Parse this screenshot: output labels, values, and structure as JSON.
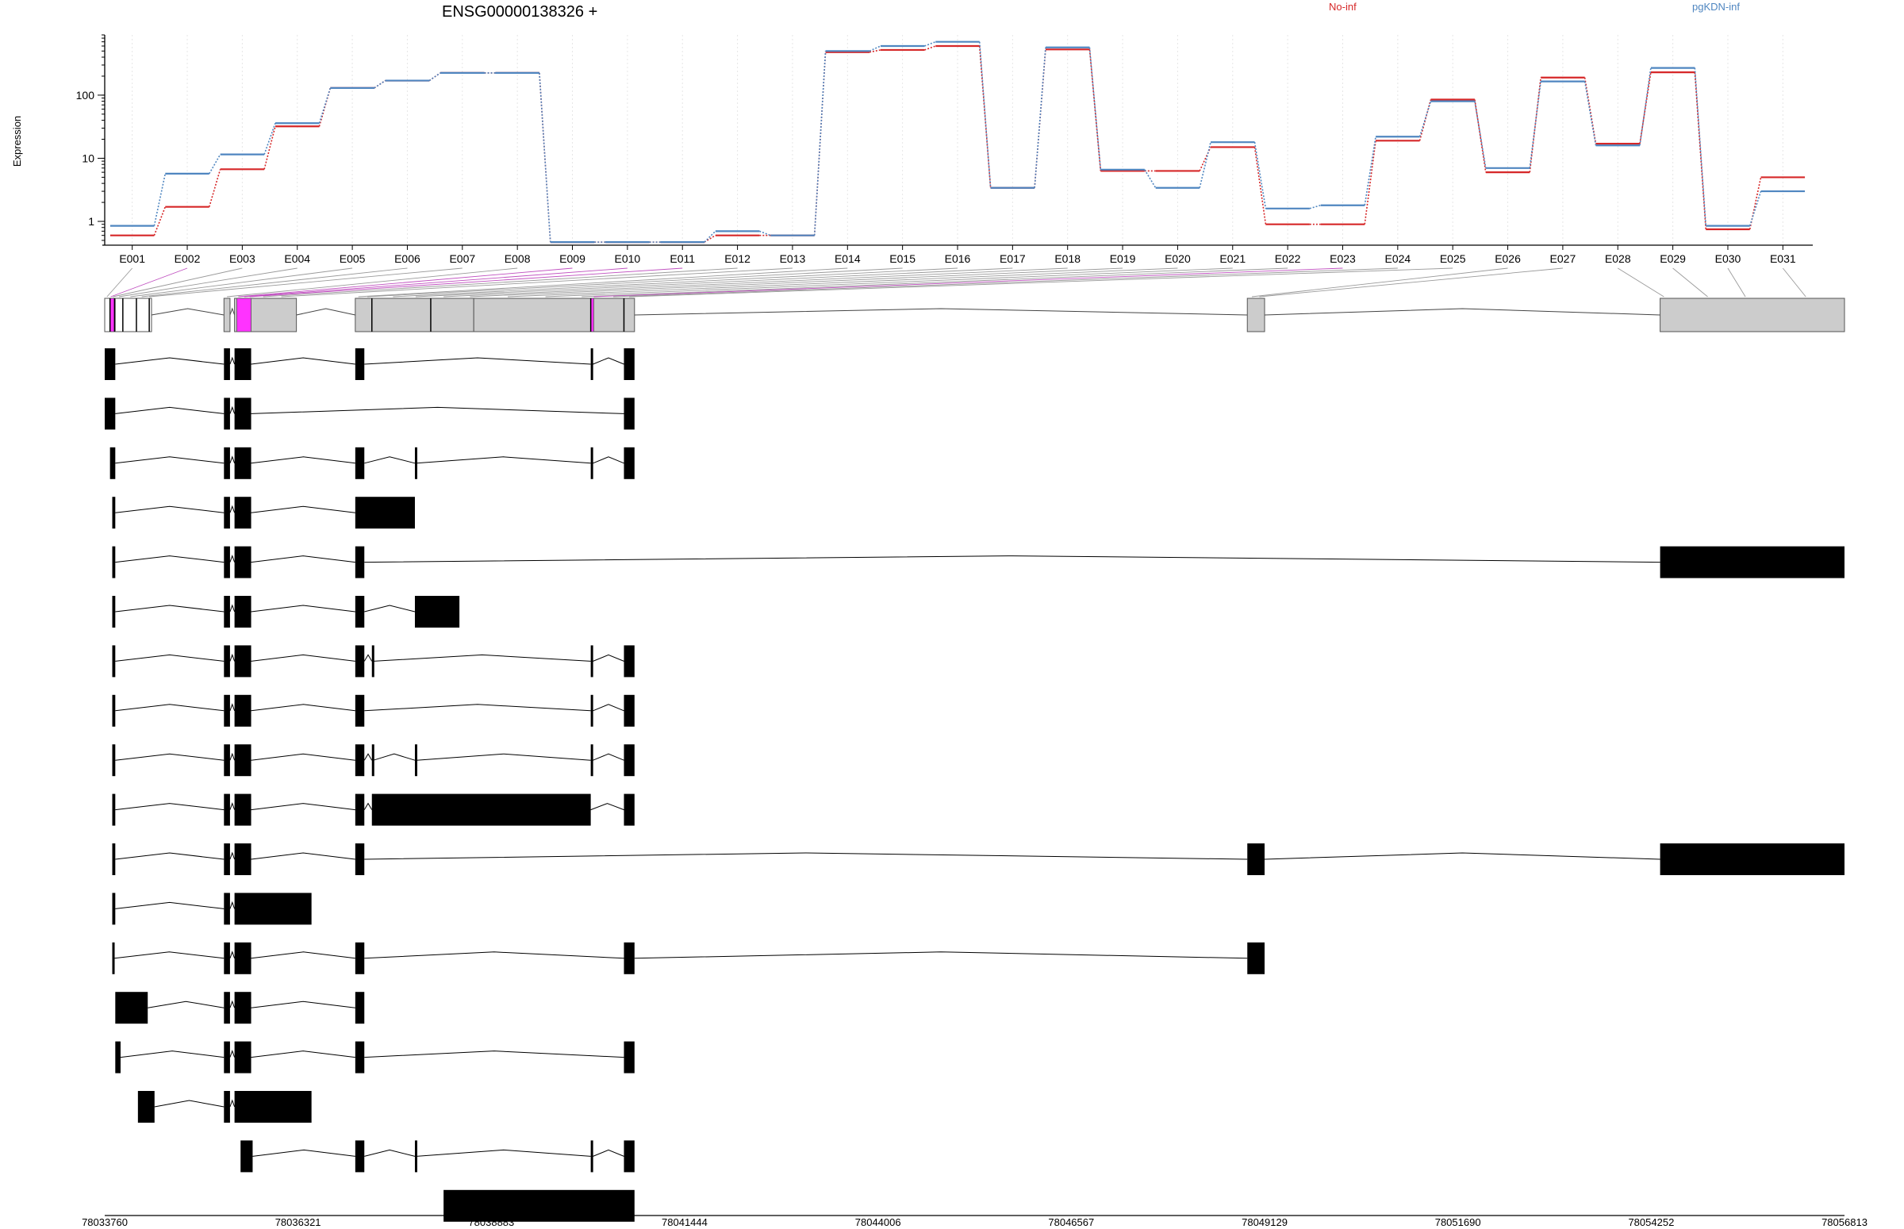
{
  "chart_data": {
    "type": "line",
    "title": "ENSG00000138326 +",
    "ylabel": "Expression",
    "xlabel": "",
    "y_scale": "log",
    "ylim": [
      0.42,
      900
    ],
    "y_ticks": [
      {
        "v": 1,
        "label": "1"
      },
      {
        "v": 10,
        "label": "10"
      },
      {
        "v": 100,
        "label": "100"
      }
    ],
    "grid": "vertical dotted lines at exon bins",
    "legend_position": "top-right",
    "colors": {
      "No-inf": "#d62728",
      "pgKDN-inf": "#4f86c0",
      "exon": "#cccccc",
      "highlight": "#ff33ff",
      "feature": "#000000"
    },
    "categories": [
      "E001",
      "E002",
      "E003",
      "E004",
      "E005",
      "E006",
      "E007",
      "E008",
      "E009",
      "E010",
      "E011",
      "E012",
      "E013",
      "E014",
      "E015",
      "E016",
      "E017",
      "E018",
      "E019",
      "E020",
      "E021",
      "E022",
      "E023",
      "E024",
      "E025",
      "E026",
      "E027",
      "E028",
      "E029",
      "E030",
      "E031"
    ],
    "series": [
      {
        "name": "No-inf",
        "color": "#d62728",
        "values": [
          0.6,
          1.7,
          6.7,
          32,
          130,
          170,
          225,
          225,
          0.47,
          0.47,
          0.47,
          0.6,
          0.6,
          480,
          520,
          600,
          3.4,
          530,
          6.3,
          6.3,
          15,
          0.9,
          0.9,
          19,
          85,
          6,
          190,
          17,
          230,
          0.75,
          5
        ]
      },
      {
        "name": "pgKDN-inf",
        "color": "#4f86c0",
        "values": [
          0.85,
          5.7,
          11.5,
          36,
          130,
          170,
          225,
          225,
          0.47,
          0.47,
          0.47,
          0.7,
          0.6,
          500,
          600,
          700,
          3.4,
          570,
          6.6,
          3.4,
          18,
          1.6,
          1.8,
          22,
          80,
          7,
          165,
          16,
          270,
          0.85,
          3
        ]
      }
    ],
    "genomic_axis": {
      "start": 78033760,
      "end": 78056813,
      "tick_labels": [
        "78033760",
        "78036321",
        "78038883",
        "78041444",
        "78044006",
        "78046567",
        "78049129",
        "78051690",
        "78054252",
        "78056813"
      ]
    },
    "gene_model": {
      "exons": [
        [
          78033760,
          78034380
        ],
        [
          78035340,
          78035420
        ],
        [
          78035480,
          78036300
        ],
        [
          78037080,
          78038650
        ],
        [
          78038650,
          78040640
        ],
        [
          78040640,
          78040780
        ],
        [
          78048900,
          78049129
        ],
        [
          78054370,
          78056813
        ]
      ],
      "dividers": [
        78033830,
        78033890,
        78034000,
        78034180,
        78034350,
        78037300,
        78038080,
        78040200,
        78040640
      ],
      "highlights": [
        [
          78033830,
          78033900
        ],
        [
          78035510,
          78035700
        ],
        [
          78040200,
          78040240
        ]
      ]
    },
    "transcripts": [
      [
        [
          78033760,
          78033900
        ],
        [
          78035340,
          78035420
        ],
        [
          78035480,
          78035700
        ],
        [
          78037080,
          78037200
        ],
        [
          78040200,
          78040230
        ],
        [
          78040640,
          78040780
        ]
      ],
      [
        [
          78033760,
          78033900
        ],
        [
          78035340,
          78035420
        ],
        [
          78035480,
          78035700
        ],
        [
          78040640,
          78040780
        ]
      ],
      [
        [
          78033830,
          78033900
        ],
        [
          78035340,
          78035420
        ],
        [
          78035480,
          78035700
        ],
        [
          78037080,
          78037200
        ],
        [
          78037870,
          78037890
        ],
        [
          78040200,
          78040230
        ],
        [
          78040640,
          78040780
        ]
      ],
      [
        [
          78033860,
          78033900
        ],
        [
          78035340,
          78035420
        ],
        [
          78035480,
          78035700
        ],
        [
          78037080,
          78037870
        ]
      ],
      [
        [
          78033860,
          78033900
        ],
        [
          78035340,
          78035420
        ],
        [
          78035480,
          78035700
        ],
        [
          78037080,
          78037200
        ],
        [
          78054370,
          78056813
        ]
      ],
      [
        [
          78033860,
          78033900
        ],
        [
          78035340,
          78035420
        ],
        [
          78035480,
          78035700
        ],
        [
          78037080,
          78037200
        ],
        [
          78037870,
          78038460
        ]
      ],
      [
        [
          78033860,
          78033900
        ],
        [
          78035340,
          78035420
        ],
        [
          78035480,
          78035700
        ],
        [
          78037080,
          78037200
        ],
        [
          78037300,
          78037320
        ],
        [
          78040200,
          78040230
        ],
        [
          78040640,
          78040780
        ]
      ],
      [
        [
          78033860,
          78033900
        ],
        [
          78035340,
          78035420
        ],
        [
          78035480,
          78035700
        ],
        [
          78037080,
          78037200
        ],
        [
          78040200,
          78040230
        ],
        [
          78040640,
          78040780
        ]
      ],
      [
        [
          78033860,
          78033900
        ],
        [
          78035340,
          78035420
        ],
        [
          78035480,
          78035700
        ],
        [
          78037080,
          78037200
        ],
        [
          78037300,
          78037320
        ],
        [
          78037870,
          78037890
        ],
        [
          78040200,
          78040230
        ],
        [
          78040640,
          78040780
        ]
      ],
      [
        [
          78033860,
          78033900
        ],
        [
          78035340,
          78035420
        ],
        [
          78035480,
          78035700
        ],
        [
          78037080,
          78037200
        ],
        [
          78037300,
          78040200
        ],
        [
          78040640,
          78040780
        ]
      ],
      [
        [
          78033860,
          78033900
        ],
        [
          78035340,
          78035420
        ],
        [
          78035480,
          78035700
        ],
        [
          78037080,
          78037200
        ],
        [
          78048900,
          78049129
        ],
        [
          78054370,
          78056813
        ]
      ],
      [
        [
          78033860,
          78033900
        ],
        [
          78035340,
          78035420
        ],
        [
          78035480,
          78036500
        ]
      ],
      [
        [
          78033860,
          78033890
        ],
        [
          78035340,
          78035420
        ],
        [
          78035480,
          78035700
        ],
        [
          78037080,
          78037200
        ],
        [
          78040640,
          78040780
        ],
        [
          78048900,
          78049129
        ]
      ],
      [
        [
          78033900,
          78034330
        ],
        [
          78035340,
          78035420
        ],
        [
          78035480,
          78035700
        ],
        [
          78037080,
          78037200
        ]
      ],
      [
        [
          78033900,
          78033970
        ],
        [
          78035340,
          78035420
        ],
        [
          78035480,
          78035700
        ],
        [
          78037080,
          78037200
        ],
        [
          78040640,
          78040780
        ]
      ],
      [
        [
          78034200,
          78034420
        ],
        [
          78035340,
          78035420
        ],
        [
          78035480,
          78036500
        ]
      ],
      [
        [
          78035560,
          78035720
        ],
        [
          78037080,
          78037200
        ],
        [
          78037870,
          78037890
        ],
        [
          78040200,
          78040230
        ],
        [
          78040640,
          78040780
        ]
      ],
      [
        [
          78038250,
          78040780
        ]
      ]
    ]
  }
}
